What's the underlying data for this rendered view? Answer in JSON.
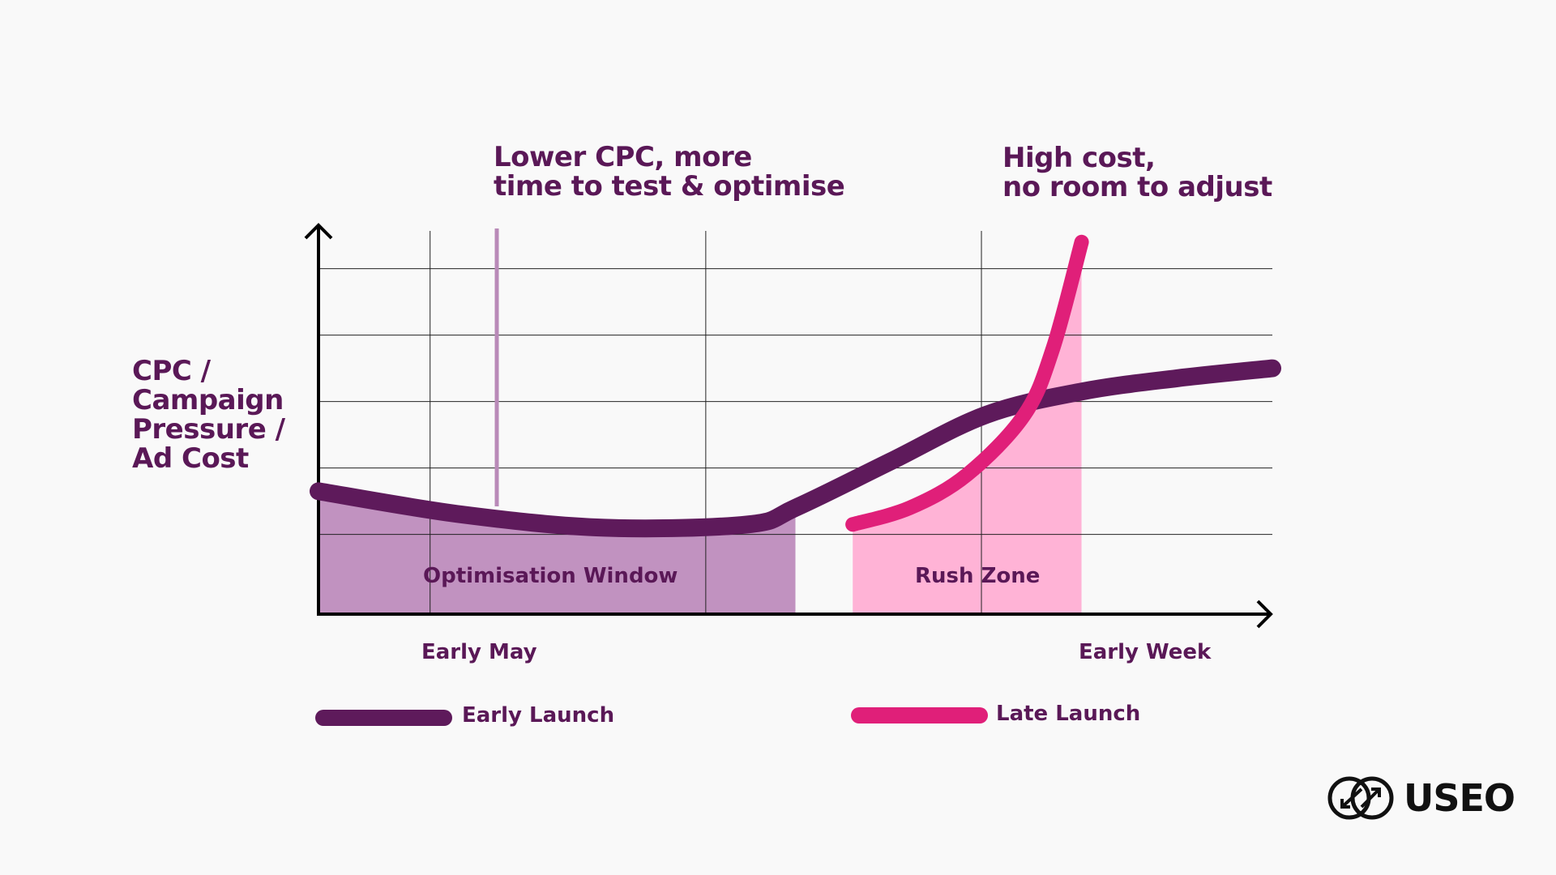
{
  "chart_data": {
    "type": "line",
    "ylabel": "CPC / Campaign Pressure / Ad Cost",
    "x_tick_labels": [
      "Early May",
      "Early Week"
    ],
    "y_ticks_shown": false,
    "grid": true,
    "legend_position": "bottom",
    "series": [
      {
        "name": "Early Launch",
        "color": "#5e1a5b",
        "x": [
          0,
          0.15,
          0.3,
          0.45,
          0.5,
          0.6,
          0.7,
          0.8,
          0.9,
          1.0
        ],
        "y": [
          1.85,
          1.5,
          1.3,
          1.35,
          1.6,
          2.3,
          3.0,
          3.35,
          3.55,
          3.7
        ]
      },
      {
        "name": "Late Launch",
        "color": "#e01f79",
        "x": [
          0.56,
          0.62,
          0.68,
          0.74,
          0.77,
          0.8
        ],
        "y": [
          1.35,
          1.6,
          2.1,
          3.0,
          4.0,
          5.6
        ]
      }
    ],
    "regions": [
      {
        "label": "Optimisation Window",
        "x_range": [
          0,
          0.5
        ],
        "color": "#c192c0"
      },
      {
        "label": "Rush Zone",
        "x_range": [
          0.56,
          0.8
        ],
        "color": "#ffb3d6"
      }
    ],
    "annotations": [
      "Lower CPC, more time to test & optimise",
      "High cost, no room to adjust"
    ]
  },
  "text": {
    "annotation_left_line1": "Lower CPC, more",
    "annotation_left_line2": "time to test & optimise",
    "annotation_right_line1": "High cost,",
    "annotation_right_line2": "no room to adjust",
    "ylabel_line1": "CPC /",
    "ylabel_line2": "Campaign",
    "ylabel_line3": "Pressure /",
    "ylabel_line4": "Ad Cost",
    "region_optimisation": "Optimisation Window",
    "region_rush": "Rush Zone",
    "xtick_early_may": "Early May",
    "xtick_early_week": "Early Week",
    "legend_early": "Early Launch",
    "legend_late": "Late Launch",
    "logo": "USEO"
  },
  "colors": {
    "early": "#5e1a5b",
    "late": "#e01f79",
    "optimisation_fill": "#c192c0",
    "rush_fill": "#ffb3d6",
    "text": "#5a1857"
  }
}
